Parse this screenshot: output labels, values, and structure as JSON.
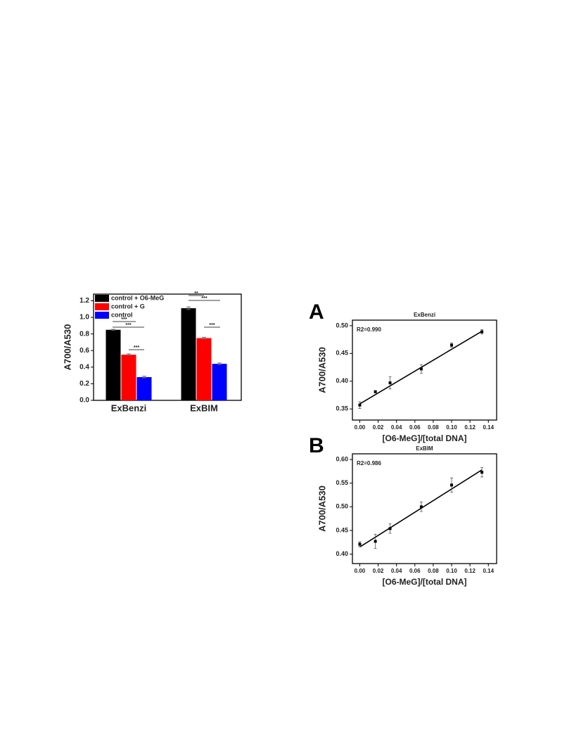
{
  "chart_data": [
    {
      "type": "bar",
      "ylabel": "A700/A530",
      "categories": [
        "ExBenzi",
        "ExBIM"
      ],
      "series": [
        {
          "name": "control + O6-MeG",
          "color": "#000000",
          "values": [
            0.85,
            1.11
          ],
          "errors": [
            0.005,
            0.015
          ]
        },
        {
          "name": "control + G",
          "color": "#ff0000",
          "values": [
            0.55,
            0.75
          ],
          "errors": [
            0.01,
            0.01
          ]
        },
        {
          "name": "control",
          "color": "#0000ff",
          "values": [
            0.28,
            0.44
          ],
          "errors": [
            0.01,
            0.01
          ]
        }
      ],
      "annotations": [
        "***",
        "***",
        "***",
        "**",
        "***",
        "***"
      ],
      "ylim": [
        0,
        1.28
      ],
      "yticks": [
        {
          "value": 0,
          "label": "0.0"
        },
        0.2,
        0.4,
        0.6,
        0.8,
        {
          "value": 1,
          "label": "1.0"
        },
        1.2
      ]
    },
    {
      "type": "scatter",
      "panel": "A",
      "title": "ExBenzi",
      "annotation": "R2=0.990",
      "xlabel": "[O6-MeG]/[total DNA]",
      "ylabel": "A700/A530",
      "x": [
        0,
        0.017,
        0.033,
        0.067,
        0.1,
        0.133
      ],
      "y": [
        0.357,
        0.381,
        0.397,
        0.422,
        0.465,
        0.489
      ],
      "errors": [
        0.006,
        0.002,
        0.011,
        0.008,
        0.004,
        0.004
      ],
      "fit": {
        "x": [
          0,
          0.133
        ],
        "y": [
          0.359,
          0.49
        ]
      },
      "xlim": [
        -0.008,
        0.149
      ],
      "ylim": [
        0.33,
        0.51
      ],
      "xticks": [
        {
          "value": 0,
          "label": "0.00"
        },
        0.02,
        0.04,
        0.06,
        0.08,
        {
          "value": 0.1,
          "label": "0.10"
        },
        0.12,
        0.14
      ],
      "yticks": [
        0.35,
        {
          "value": 0.4,
          "label": "0.40"
        },
        0.45,
        {
          "value": 0.5,
          "label": "0.50"
        }
      ]
    },
    {
      "type": "scatter",
      "panel": "B",
      "title": "ExBIM",
      "annotation": "R2=0.986",
      "xlabel": "[O6-MeG]/[total DNA]",
      "ylabel": "A700/A530",
      "x": [
        0,
        0.017,
        0.033,
        0.067,
        0.1,
        0.133
      ],
      "y": [
        0.421,
        0.427,
        0.454,
        0.5,
        0.546,
        0.573
      ],
      "errors": [
        0.005,
        0.015,
        0.01,
        0.01,
        0.015,
        0.01
      ],
      "fit": {
        "x": [
          0,
          0.133
        ],
        "y": [
          0.415,
          0.578
        ]
      },
      "xlim": [
        -0.008,
        0.149
      ],
      "ylim": [
        0.38,
        0.612
      ],
      "xticks": [
        {
          "value": 0,
          "label": "0.00"
        },
        0.02,
        0.04,
        0.06,
        0.08,
        {
          "value": 0.1,
          "label": "0.10"
        },
        0.12,
        0.14
      ],
      "yticks": [
        {
          "value": 0.4,
          "label": "0.40"
        },
        0.45,
        {
          "value": 0.5,
          "label": "0.50"
        },
        0.55,
        {
          "value": 0.6,
          "label": "0.60"
        }
      ]
    }
  ]
}
